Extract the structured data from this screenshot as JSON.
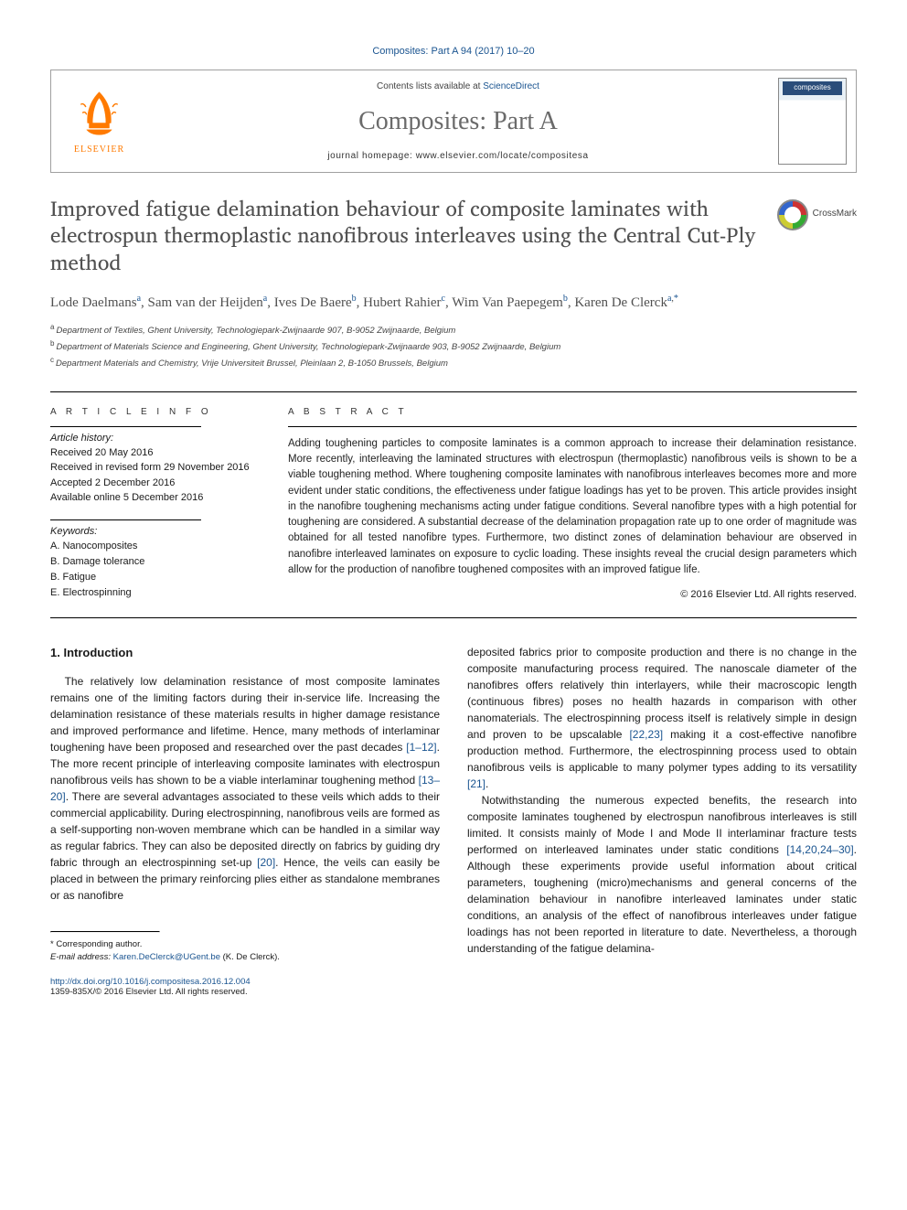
{
  "citation": "Composites: Part A 94 (2017) 10–20",
  "header": {
    "contents_prefix": "Contents lists available at",
    "contents_link": "ScienceDirect",
    "journal": "Composites: Part A",
    "homepage_prefix": "journal homepage:",
    "homepage_url": "www.elsevier.com/locate/compositesa",
    "publisher_name": "ELSEVIER"
  },
  "article": {
    "title": "Improved fatigue delamination behaviour of composite laminates with electrospun thermoplastic nanofibrous interleaves using the Central Cut-Ply method",
    "crossmark": "CrossMark"
  },
  "authors_html": "Lode Daelmans",
  "authors": [
    {
      "name": "Lode Daelmans",
      "aff": "a"
    },
    {
      "name": "Sam van der Heijden",
      "aff": "a"
    },
    {
      "name": "Ives De Baere",
      "aff": "b"
    },
    {
      "name": "Hubert Rahier",
      "aff": "c"
    },
    {
      "name": "Wim Van Paepegem",
      "aff": "b"
    },
    {
      "name": "Karen De Clerck",
      "aff": "a",
      "corresponding": true
    }
  ],
  "affiliations": [
    {
      "sup": "a",
      "text": "Department of Textiles, Ghent University, Technologiepark-Zwijnaarde 907, B-9052 Zwijnaarde, Belgium"
    },
    {
      "sup": "b",
      "text": "Department of Materials Science and Engineering, Ghent University, Technologiepark-Zwijnaarde 903, B-9052 Zwijnaarde, Belgium"
    },
    {
      "sup": "c",
      "text": "Department Materials and Chemistry, Vrije Universiteit Brussel, Pleinlaan 2, B-1050 Brussels, Belgium"
    }
  ],
  "info": {
    "label": "A R T I C L E   I N F O",
    "history_label": "Article history:",
    "history": [
      "Received 20 May 2016",
      "Received in revised form 29 November 2016",
      "Accepted 2 December 2016",
      "Available online 5 December 2016"
    ],
    "keywords_label": "Keywords:",
    "keywords": [
      "A. Nanocomposites",
      "B. Damage tolerance",
      "B. Fatigue",
      "E. Electrospinning"
    ]
  },
  "abstract": {
    "label": "A B S T R A C T",
    "text": "Adding toughening particles to composite laminates is a common approach to increase their delamination resistance. More recently, interleaving the laminated structures with electrospun (thermoplastic) nanofibrous veils is shown to be a viable toughening method. Where toughening composite laminates with nanofibrous interleaves becomes more and more evident under static conditions, the effectiveness under fatigue loadings has yet to be proven. This article provides insight in the nanofibre toughening mechanisms acting under fatigue conditions. Several nanofibre types with a high potential for toughening are considered. A substantial decrease of the delamination propagation rate up to one order of magnitude was obtained for all tested nanofibre types. Furthermore, two distinct zones of delamination behaviour are observed in nanofibre interleaved laminates on exposure to cyclic loading. These insights reveal the crucial design parameters which allow for the production of nanofibre toughened composites with an improved fatigue life.",
    "copyright": "© 2016 Elsevier Ltd. All rights reserved."
  },
  "body": {
    "heading": "1. Introduction",
    "col1": "The relatively low delamination resistance of most composite laminates remains one of the limiting factors during their in-service life. Increasing the delamination resistance of these materials results in higher damage resistance and improved performance and lifetime. Hence, many methods of interlaminar toughening have been proposed and researched over the past decades [1–12]. The more recent principle of interleaving composite laminates with electrospun nanofibrous veils has shown to be a viable interlaminar toughening method [13–20]. There are several advantages associated to these veils which adds to their commercial applicability. During electrospinning, nanofibrous veils are formed as a self-supporting non-woven membrane which can be handled in a similar way as regular fabrics. They can also be deposited directly on fabrics by guiding dry fabric through an electrospinning set-up [20]. Hence, the veils can easily be placed in between the primary reinforcing plies either as standalone membranes or as nanofibre",
    "refs1": {
      "r1": "[1–12]",
      "r2": "[13–20]",
      "r3": "[20]"
    },
    "col2a": "deposited fabrics prior to composite production and there is no change in the composite manufacturing process required. The nanoscale diameter of the nanofibres offers relatively thin interlayers, while their macroscopic length (continuous fibres) poses no health hazards in comparison with other nanomaterials. The electrospinning process itself is relatively simple in design and proven to be upscalable [22,23] making it a cost-effective nanofibre production method. Furthermore, the electrospinning process used to obtain nanofibrous veils is applicable to many polymer types adding to its versatility [21].",
    "col2b": "Notwithstanding the numerous expected benefits, the research into composite laminates toughened by electrospun nanofibrous interleaves is still limited. It consists mainly of Mode I and Mode II interlaminar fracture tests performed on interleaved laminates under static conditions [14,20,24–30]. Although these experiments provide useful information about critical parameters, toughening (micro)mechanisms and general concerns of the delamination behaviour in nanofibre interleaved laminates under static conditions, an analysis of the effect of nanofibrous interleaves under fatigue loadings has not been reported in literature to date. Nevertheless, a thorough understanding of the fatigue delamina-",
    "refs2": {
      "r1": "[22,23]",
      "r2": "[21]",
      "r3": "[14,20,24–30]"
    }
  },
  "footnotes": {
    "corr": "* Corresponding author.",
    "email_label": "E-mail address:",
    "email": "Karen.DeClerck@UGent.be",
    "email_name": "(K. De Clerck)."
  },
  "bottom": {
    "doi": "http://dx.doi.org/10.1016/j.compositesa.2016.12.004",
    "issn": "1359-835X/© 2016 Elsevier Ltd. All rights reserved."
  },
  "colors": {
    "link": "#1a5490",
    "orange": "#ff7a00",
    "title_gray": "#505050"
  }
}
